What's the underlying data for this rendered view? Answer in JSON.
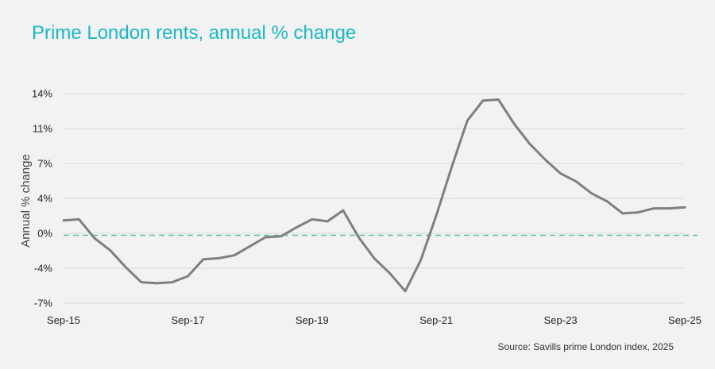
{
  "chart_data": {
    "type": "line",
    "title": "Prime London rents, annual % change",
    "ylabel": "Annual % change",
    "xlabel": "",
    "source": "Source: Savills prime London index, 2025",
    "ylim": [
      -7,
      14
    ],
    "yticks": [
      {
        "value": 14,
        "label": "14%"
      },
      {
        "value": 10.5,
        "label": "11%"
      },
      {
        "value": 7,
        "label": "7%"
      },
      {
        "value": 3.5,
        "label": "4%"
      },
      {
        "value": 0,
        "label": "0%"
      },
      {
        "value": -3.5,
        "label": "-4%"
      },
      {
        "value": -7,
        "label": "-7%"
      }
    ],
    "xlim": [
      2015.667,
      2025.667
    ],
    "xticks": [
      {
        "value": 2015.667,
        "label": "Sep-15"
      },
      {
        "value": 2017.667,
        "label": "Sep-17"
      },
      {
        "value": 2019.667,
        "label": "Sep-19"
      },
      {
        "value": 2021.667,
        "label": "Sep-21"
      },
      {
        "value": 2023.667,
        "label": "Sep-23"
      },
      {
        "value": 2025.667,
        "label": "Sep-25"
      }
    ],
    "grid": true,
    "reference_line": {
      "y": -0.2,
      "color": "#4fbfa8",
      "style": "dashed"
    },
    "series": [
      {
        "color": "#7f7f7f",
        "x": [
          2015.667,
          2015.917,
          2016.167,
          2016.417,
          2016.667,
          2016.917,
          2017.167,
          2017.417,
          2017.667,
          2017.917,
          2018.167,
          2018.417,
          2018.667,
          2018.917,
          2019.167,
          2019.417,
          2019.667,
          2019.917,
          2020.167,
          2020.417,
          2020.667,
          2020.917,
          2021.167,
          2021.417,
          2021.667,
          2021.917,
          2022.167,
          2022.417,
          2022.667,
          2022.917,
          2023.167,
          2023.417,
          2023.667,
          2023.917,
          2024.167,
          2024.417,
          2024.667,
          2024.917,
          2025.167,
          2025.417,
          2025.667
        ],
        "values": [
          1.3,
          1.4,
          -0.5,
          -1.7,
          -3.4,
          -4.9,
          -5.0,
          -4.9,
          -4.3,
          -2.6,
          -2.5,
          -2.2,
          -1.3,
          -0.4,
          -0.3,
          0.6,
          1.4,
          1.2,
          2.3,
          -0.4,
          -2.5,
          -4.0,
          -5.8,
          -2.7,
          1.8,
          6.7,
          11.3,
          13.3,
          13.4,
          11.0,
          9.0,
          7.4,
          6.0,
          5.2,
          4.0,
          3.2,
          2.0,
          2.1,
          2.5,
          2.5,
          2.6
        ]
      }
    ]
  }
}
